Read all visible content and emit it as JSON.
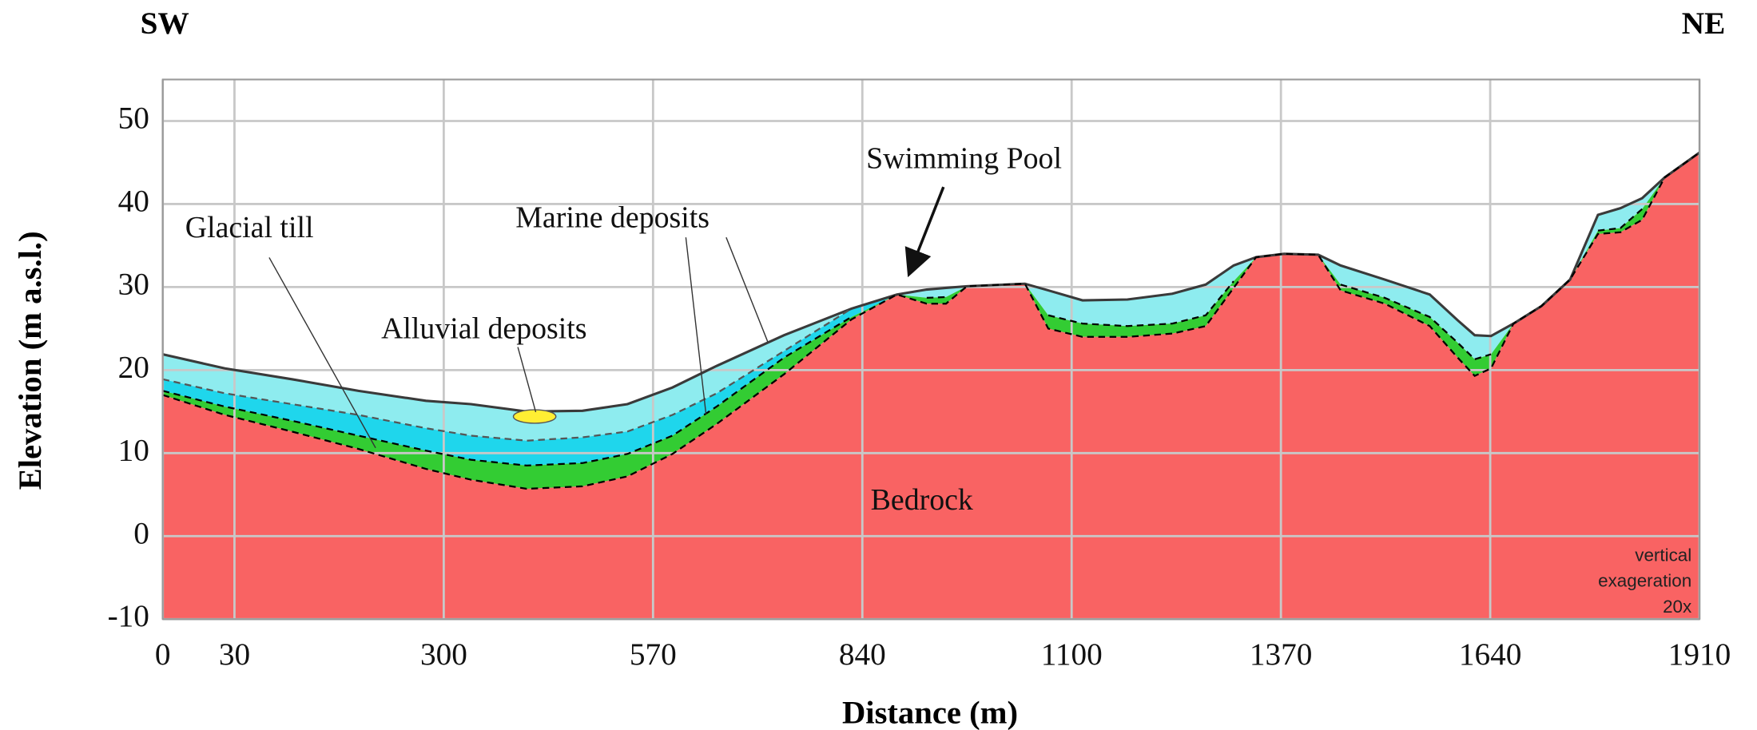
{
  "chart_data": {
    "type": "area",
    "left_label": "SW",
    "right_label": "NE",
    "xlabel": "Distance (m)",
    "ylabel": "Elevation (m a.s.l.)",
    "xlim": [
      0,
      1910
    ],
    "ylim": [
      -10,
      55
    ],
    "xticks": [
      0,
      30,
      300,
      570,
      840,
      1100,
      1370,
      1640,
      1910
    ],
    "yticks": [
      -10,
      0,
      10,
      20,
      30,
      40,
      50
    ],
    "grid": true,
    "annotations": [
      "Glacial till",
      "Marine deposits",
      "Alluvial deposits",
      "Swimming Pool",
      "Bedrock"
    ],
    "note": [
      "vertical",
      "exageration",
      "20x"
    ],
    "x": [
      0,
      26,
      104,
      190,
      277,
      335,
      407,
      479,
      537,
      595,
      652,
      739,
      826,
      883,
      920,
      944,
      970,
      1042,
      1071,
      1114,
      1172,
      1230,
      1273,
      1309,
      1338,
      1374,
      1418,
      1447,
      1504,
      1562,
      1598,
      1620,
      1641,
      1670,
      1706,
      1743,
      1779,
      1808,
      1836,
      1865,
      1910
    ],
    "series": [
      {
        "color": "#3a3a3a",
        "fill": "#8eecef",
        "dashed": false,
        "values": [
          21.9,
          20.2,
          18.9,
          17.5,
          16.3,
          15.9,
          15.0,
          15.1,
          15.9,
          17.9,
          20.5,
          24.2,
          27.4,
          29.1,
          29.7,
          29.9,
          30.1,
          30.4,
          29.6,
          28.4,
          28.5,
          29.2,
          30.3,
          32.6,
          33.6,
          34.0,
          33.9,
          32.6,
          30.9,
          29.1,
          26.0,
          24.2,
          24.1,
          25.6,
          27.7,
          30.9,
          38.7,
          39.5,
          40.7,
          43.2,
          46.2
        ]
      },
      {
        "color": "#555555",
        "fill": "#1fd6ec",
        "dashed": true,
        "values": [
          18.9,
          17.2,
          15.9,
          14.6,
          13.0,
          12.1,
          11.5,
          11.9,
          12.6,
          14.6,
          17.2,
          22.3,
          27.4,
          null,
          null,
          null,
          null,
          null,
          null,
          null,
          null,
          null,
          null,
          null,
          null,
          null,
          null,
          null,
          null,
          null,
          null,
          null,
          null,
          null,
          null,
          null,
          null,
          null,
          null,
          null,
          null
        ]
      },
      {
        "color": "#000000",
        "fill": "#33cc33",
        "dashed": true,
        "values": [
          17.5,
          15.6,
          13.9,
          12.1,
          10.3,
          9.2,
          8.5,
          8.8,
          9.9,
          12.1,
          15.6,
          21.5,
          26.4,
          null,
          28.7,
          28.8,
          null,
          null,
          26.6,
          25.6,
          25.3,
          25.6,
          26.6,
          30.7,
          null,
          null,
          null,
          30.3,
          28.7,
          26.4,
          23.3,
          21.3,
          21.9,
          null,
          null,
          null,
          36.8,
          37.1,
          39.4,
          null,
          null
        ]
      },
      {
        "color": "#000000",
        "fill": "#f96363",
        "dashed": true,
        "values": [
          17.0,
          14.6,
          12.6,
          10.5,
          8.1,
          6.8,
          5.7,
          6.0,
          7.2,
          9.9,
          13.5,
          19.5,
          26.1,
          29.1,
          28.0,
          28.0,
          30.1,
          30.4,
          25.0,
          24.0,
          24.0,
          24.4,
          25.3,
          29.9,
          33.6,
          34.0,
          33.9,
          29.6,
          28.0,
          25.3,
          21.5,
          19.3,
          20.2,
          25.6,
          27.7,
          30.9,
          36.4,
          36.6,
          38.1,
          43.2,
          46.2
        ]
      }
    ]
  }
}
